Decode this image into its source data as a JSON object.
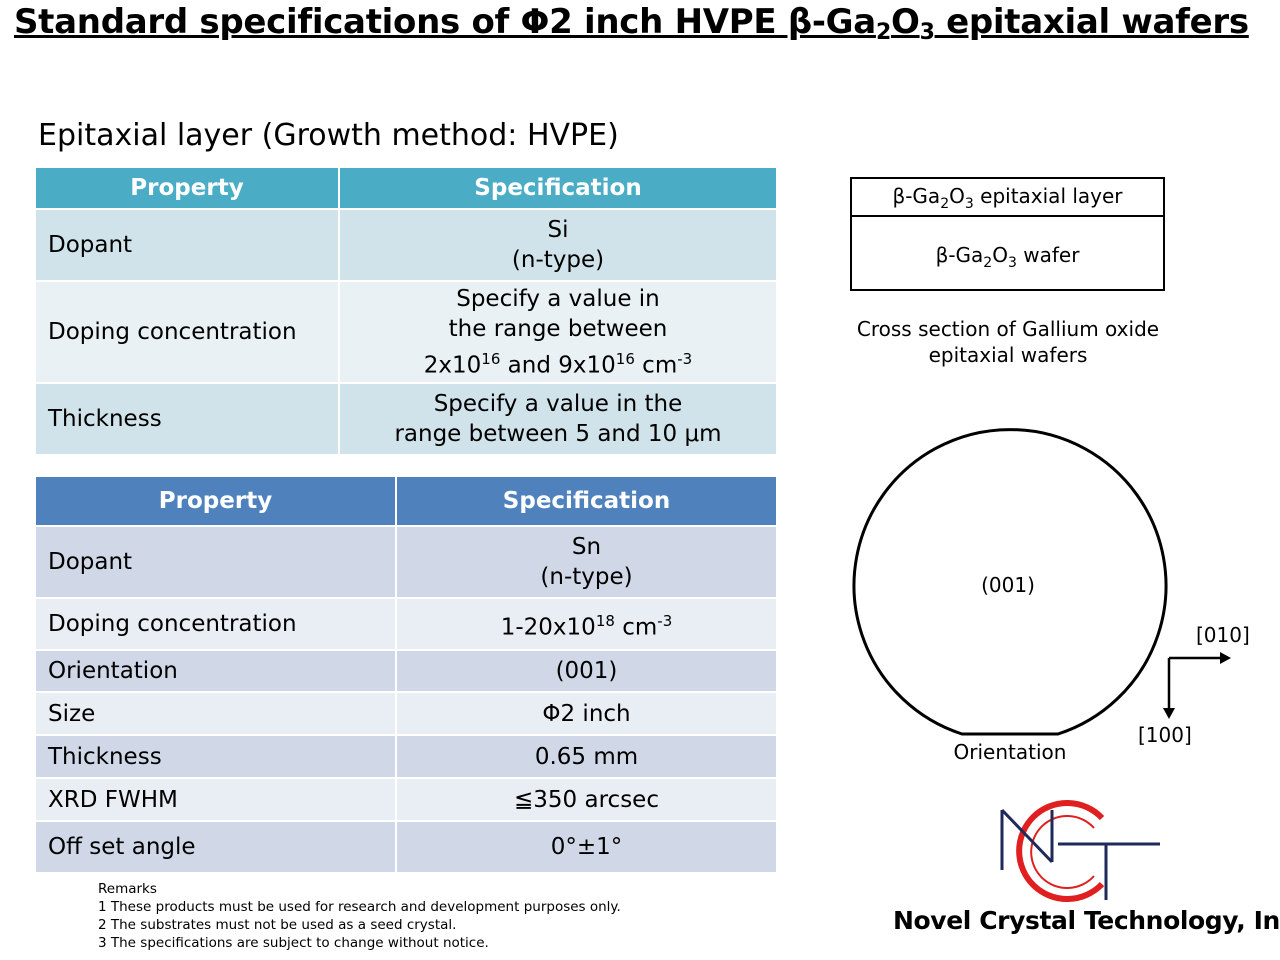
{
  "title": {
    "prefix": "Standard specifications of Φ2 inch HVPE β-Ga",
    "sub1": "2",
    "mid": "O",
    "sub2": "3",
    "suffix": " epitaxial wafers"
  },
  "epi_heading": "Epitaxial layer (Growth method: HVPE)",
  "table1": {
    "header_property": "Property",
    "header_spec": "Specification",
    "dopant_label": "Dopant",
    "dopant_line1": "Si",
    "dopant_line2": "(n-type)",
    "doping_label": "Doping concentration",
    "doping_line1": "Specify a value in",
    "doping_line2": "the range between",
    "doping_a": "2x10",
    "doping_a_exp": "16",
    "doping_and": " and 9x10",
    "doping_b_exp": "16",
    "doping_unit": " cm",
    "doping_unit_exp": "-3",
    "thickness_label": "Thickness",
    "thickness_line1": "Specify a value in the",
    "thickness_line2": "range between 5 and 10 μm"
  },
  "table2": {
    "header_property": "Property",
    "header_spec": "Specification",
    "dopant_label": "Dopant",
    "dopant_line1": "Sn",
    "dopant_line2": "(n-type)",
    "doping_label": "Doping concentration",
    "doping_value": "1-20x10",
    "doping_exp": "18",
    "doping_unit": " cm",
    "doping_unit_exp": "-3",
    "orientation_label": "Orientation",
    "orientation_value": "(001)",
    "size_label": "Size",
    "size_value": "Φ2 inch",
    "thickness_label": "Thickness",
    "thickness_value": "0.65 mm",
    "xrd_label": "XRD FWHM",
    "xrd_value": "≦350 arcsec",
    "offset_label": "Off set angle",
    "offset_value": "0°±1°"
  },
  "cross_section": {
    "layer_prefix": "β-Ga",
    "layer_sub1": "2",
    "layer_mid": "O",
    "layer_sub2": "3",
    "layer_suffix": " epitaxial layer",
    "wafer_prefix": "β-Ga",
    "wafer_sub1": "2",
    "wafer_mid": "O",
    "wafer_sub2": "3",
    "wafer_suffix": " wafer",
    "caption_line1": "Cross section of Gallium oxide",
    "caption_line2": "epitaxial wafers"
  },
  "wafer_diagram": {
    "plane": "(001)",
    "flat_label": "Orientation",
    "dir_010": "[010]",
    "dir_100": "[100]"
  },
  "remarks": {
    "heading": "Remarks",
    "item1": "1 These products must be used for research and development purposes only.",
    "item2": "2 The substrates must not be used as a seed crystal.",
    "item3": "3 The specifications are subject to change without notice."
  },
  "company": "Novel Crystal Technology, Inc.",
  "colors": {
    "table1_header": "#4bacc6",
    "table2_header": "#4f81bd",
    "logo_red": "#e02020",
    "logo_navy": "#1f2a5a"
  }
}
